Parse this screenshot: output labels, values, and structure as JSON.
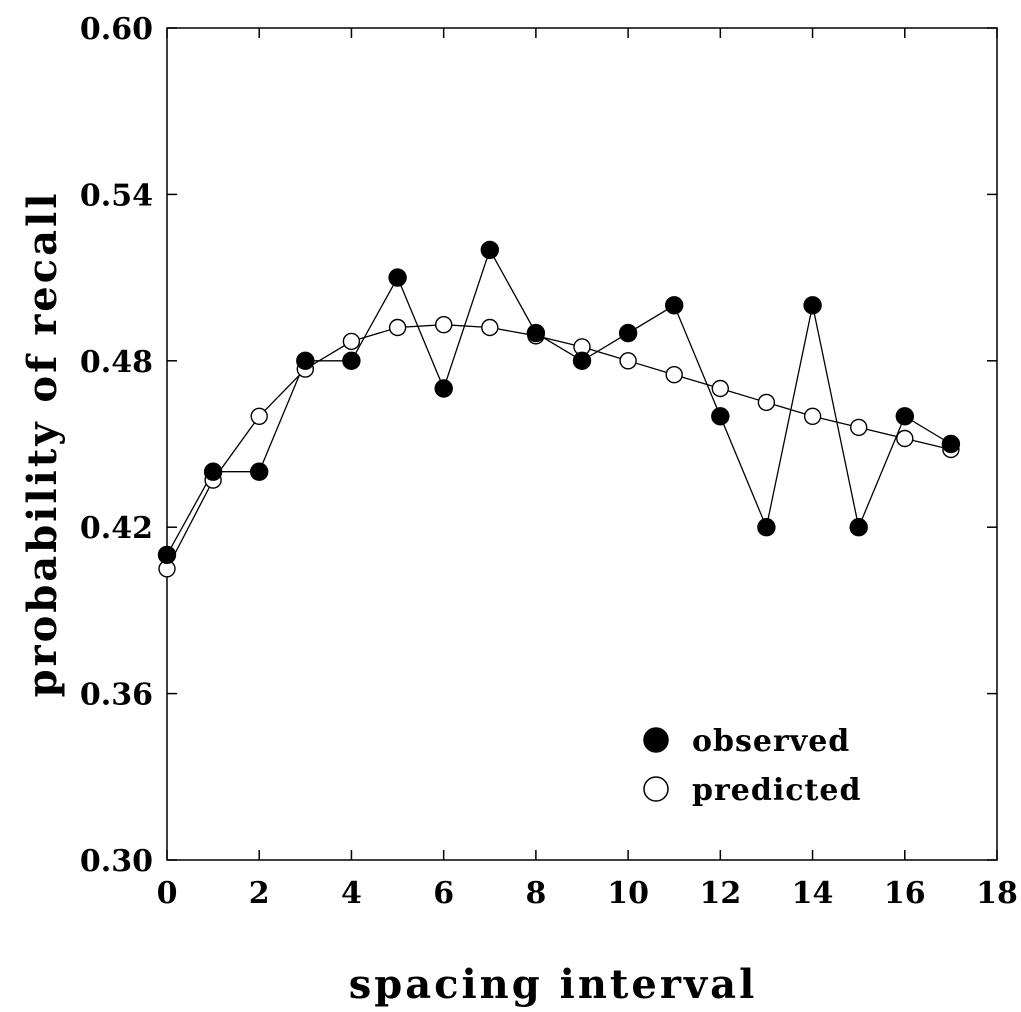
{
  "chart_data": {
    "type": "line",
    "title": "",
    "xlabel": "spacing interval",
    "ylabel": "probability of recall",
    "xlim": [
      0,
      18
    ],
    "ylim": [
      0.3,
      0.6
    ],
    "xticks": [
      0,
      2,
      4,
      6,
      8,
      10,
      12,
      14,
      16,
      18
    ],
    "xtick_labels": [
      "0",
      "2",
      "4",
      "6",
      "8",
      "10",
      "12",
      "14",
      "16",
      "18"
    ],
    "yticks": [
      0.3,
      0.36,
      0.42,
      0.48,
      0.54,
      0.6
    ],
    "ytick_labels": [
      "0.30",
      "0.36",
      "0.42",
      "0.48",
      "0.54",
      "0.60"
    ],
    "grid": false,
    "legend_position": "bottom-right",
    "series": [
      {
        "name": "observed",
        "marker": "filled-circle",
        "color": "#000000",
        "x": [
          0,
          1,
          2,
          3,
          4,
          5,
          6,
          7,
          8,
          9,
          10,
          11,
          12,
          13,
          14,
          15,
          16,
          17
        ],
        "y": [
          0.41,
          0.44,
          0.44,
          0.48,
          0.48,
          0.51,
          0.47,
          0.52,
          0.49,
          0.48,
          0.49,
          0.5,
          0.46,
          0.42,
          0.5,
          0.42,
          0.46,
          0.45
        ]
      },
      {
        "name": "predicted",
        "marker": "open-circle",
        "color": "#000000",
        "x": [
          0,
          1,
          2,
          3,
          4,
          5,
          6,
          7,
          8,
          9,
          10,
          11,
          12,
          13,
          14,
          15,
          16,
          17
        ],
        "y": [
          0.405,
          0.437,
          0.46,
          0.477,
          0.487,
          0.492,
          0.493,
          0.492,
          0.489,
          0.485,
          0.48,
          0.475,
          0.47,
          0.465,
          0.46,
          0.456,
          0.452,
          0.448
        ]
      }
    ]
  }
}
